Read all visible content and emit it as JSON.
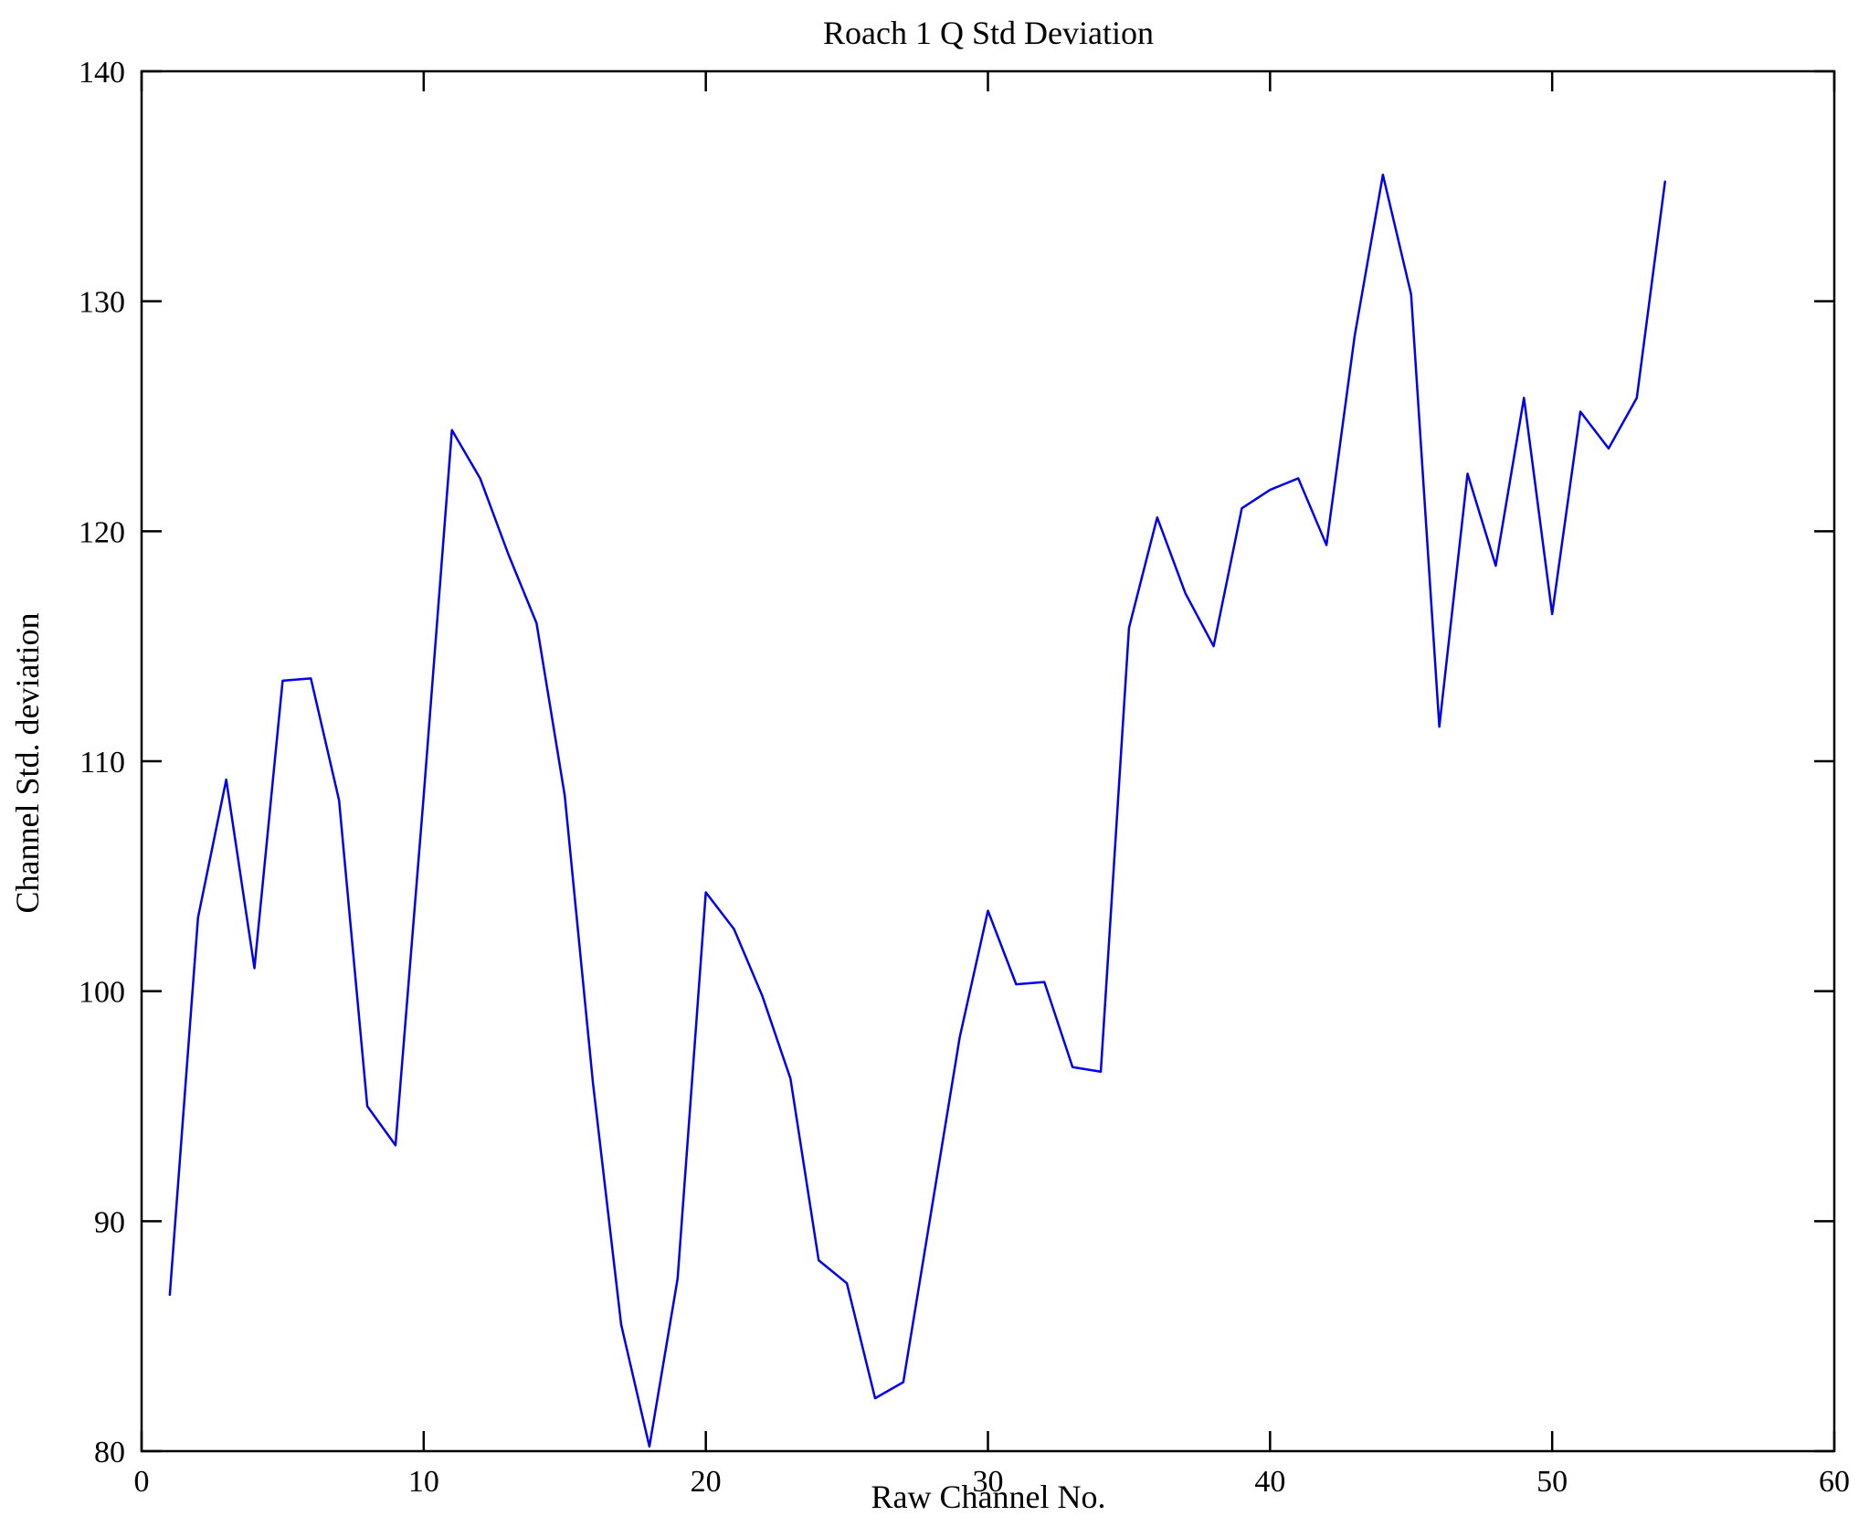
{
  "chart_data": {
    "type": "line",
    "title": "Roach 1 Q Std Deviation",
    "xlabel": "Raw Channel No.",
    "ylabel": "Channel Std. deviation",
    "xlim": [
      0,
      60
    ],
    "ylim": [
      80,
      140
    ],
    "xticks": [
      0,
      10,
      20,
      30,
      40,
      50,
      60
    ],
    "yticks": [
      80,
      90,
      100,
      110,
      120,
      130,
      140
    ],
    "grid": false,
    "legend": "none",
    "line_color": "#0000ee",
    "frame_color": "#000000",
    "x": [
      1,
      2,
      3,
      4,
      5,
      6,
      7,
      8,
      9,
      10,
      11,
      12,
      13,
      14,
      15,
      16,
      17,
      18,
      19,
      20,
      21,
      22,
      23,
      24,
      25,
      26,
      27,
      28,
      29,
      30,
      31,
      32,
      33,
      34,
      35,
      36,
      37,
      38,
      39,
      40,
      41,
      42,
      43,
      44,
      45,
      46,
      47,
      48,
      49,
      50,
      51,
      52,
      53,
      54
    ],
    "y": [
      86.8,
      103.2,
      109.2,
      101.0,
      113.5,
      113.6,
      108.3,
      95.0,
      93.3,
      108.5,
      124.4,
      122.3,
      119.0,
      116.0,
      108.5,
      96.0,
      85.5,
      80.2,
      87.5,
      104.3,
      102.7,
      99.8,
      96.2,
      88.3,
      87.3,
      82.3,
      83.0,
      90.5,
      98.0,
      103.5,
      100.3,
      100.4,
      96.7,
      96.5,
      115.8,
      120.6,
      117.3,
      115.0,
      121.0,
      121.8,
      122.3,
      119.4,
      128.5,
      135.5,
      130.3,
      111.5,
      122.5,
      118.5,
      125.8,
      116.4,
      125.2,
      123.6,
      125.8,
      135.2
    ]
  }
}
